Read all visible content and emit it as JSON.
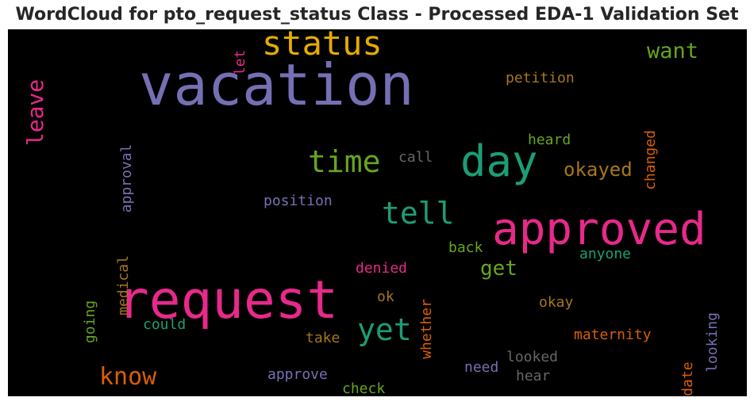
{
  "title": "WordCloud for pto_request_status Class - Processed EDA-1 Validation Set",
  "chart_data": {
    "type": "wordcloud",
    "title": "WordCloud for pto_request_status Class - Processed EDA-1 Validation Set",
    "background": "#000000",
    "colormap": "Dark2",
    "words": [
      {
        "text": "vacation",
        "weight": 100,
        "color": "#7570b3",
        "orientation": "horizontal"
      },
      {
        "text": "request",
        "weight": 93,
        "color": "#e7298a",
        "orientation": "horizontal"
      },
      {
        "text": "approved",
        "weight": 78,
        "color": "#e7298a",
        "orientation": "horizontal"
      },
      {
        "text": "day",
        "weight": 70,
        "color": "#1b9e77",
        "orientation": "horizontal"
      },
      {
        "text": "status",
        "weight": 58,
        "color": "#e6ab02",
        "orientation": "horizontal"
      },
      {
        "text": "time",
        "weight": 50,
        "color": "#66a61e",
        "orientation": "horizontal"
      },
      {
        "text": "tell",
        "weight": 50,
        "color": "#1b9e77",
        "orientation": "horizontal"
      },
      {
        "text": "yet",
        "weight": 50,
        "color": "#1b9e77",
        "orientation": "horizontal"
      },
      {
        "text": "know",
        "weight": 36,
        "color": "#d95f02",
        "orientation": "horizontal"
      },
      {
        "text": "leave",
        "weight": 34,
        "color": "#e7298a",
        "orientation": "vertical"
      },
      {
        "text": "want",
        "weight": 32,
        "color": "#66a61e",
        "orientation": "horizontal"
      },
      {
        "text": "okayed",
        "weight": 30,
        "color": "#a6761d",
        "orientation": "horizontal"
      },
      {
        "text": "get",
        "weight": 30,
        "color": "#66a61e",
        "orientation": "horizontal"
      },
      {
        "text": "petition",
        "weight": 22,
        "color": "#a6761d",
        "orientation": "horizontal"
      },
      {
        "text": "let",
        "weight": 22,
        "color": "#e7298a",
        "orientation": "vertical"
      },
      {
        "text": "approval",
        "weight": 21,
        "color": "#7570b3",
        "orientation": "vertical"
      },
      {
        "text": "heard",
        "weight": 22,
        "color": "#66a61e",
        "orientation": "horizontal"
      },
      {
        "text": "changed",
        "weight": 22,
        "color": "#d95f02",
        "orientation": "vertical"
      },
      {
        "text": "call",
        "weight": 22,
        "color": "#666666",
        "orientation": "horizontal"
      },
      {
        "text": "position",
        "weight": 22,
        "color": "#7570b3",
        "orientation": "horizontal"
      },
      {
        "text": "medical",
        "weight": 21,
        "color": "#a6761d",
        "orientation": "vertical"
      },
      {
        "text": "back",
        "weight": 21,
        "color": "#66a61e",
        "orientation": "horizontal"
      },
      {
        "text": "anyone",
        "weight": 21,
        "color": "#1b9e77",
        "orientation": "horizontal"
      },
      {
        "text": "denied",
        "weight": 21,
        "color": "#e7298a",
        "orientation": "horizontal"
      },
      {
        "text": "whether",
        "weight": 21,
        "color": "#d95f02",
        "orientation": "vertical"
      },
      {
        "text": "going",
        "weight": 21,
        "color": "#66a61e",
        "orientation": "vertical"
      },
      {
        "text": "ok",
        "weight": 21,
        "color": "#a6761d",
        "orientation": "horizontal"
      },
      {
        "text": "okay",
        "weight": 21,
        "color": "#a6761d",
        "orientation": "horizontal"
      },
      {
        "text": "could",
        "weight": 21,
        "color": "#1b9e77",
        "orientation": "horizontal"
      },
      {
        "text": "take",
        "weight": 21,
        "color": "#a6761d",
        "orientation": "horizontal"
      },
      {
        "text": "maternity",
        "weight": 22,
        "color": "#d95f02",
        "orientation": "horizontal"
      },
      {
        "text": "looking",
        "weight": 21,
        "color": "#7570b3",
        "orientation": "vertical"
      },
      {
        "text": "update",
        "weight": 21,
        "color": "#d95f02",
        "orientation": "vertical"
      },
      {
        "text": "looked",
        "weight": 21,
        "color": "#666666",
        "orientation": "horizontal"
      },
      {
        "text": "need",
        "weight": 21,
        "color": "#7570b3",
        "orientation": "horizontal"
      },
      {
        "text": "hear",
        "weight": 21,
        "color": "#666666",
        "orientation": "horizontal"
      },
      {
        "text": "approve",
        "weight": 21,
        "color": "#7570b3",
        "orientation": "horizontal"
      },
      {
        "text": "check",
        "weight": 21,
        "color": "#66a61e",
        "orientation": "horizontal"
      }
    ]
  }
}
